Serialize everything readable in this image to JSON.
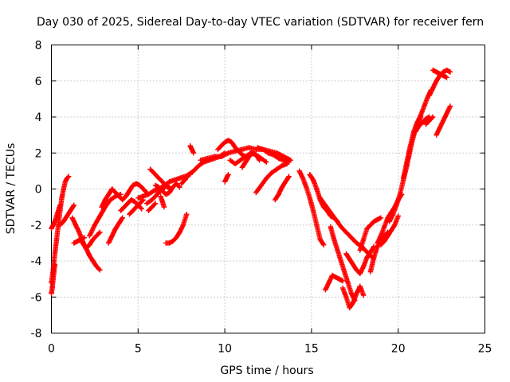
{
  "chart_data": {
    "type": "scatter",
    "title": "Day 030 of 2025, Sidereal Day-to-day VTEC variation (SDTVAR) for receiver fern",
    "xlabel": "GPS time / hours",
    "ylabel": "SDTVAR / TECUs",
    "xlim": [
      0,
      25
    ],
    "ylim": [
      -8,
      8
    ],
    "xticks": [
      "0",
      "5",
      "10",
      "15",
      "20",
      "25"
    ],
    "yticks": [
      "-8",
      "-6",
      "-4",
      "-2",
      "0",
      "2",
      "4",
      "6",
      "8"
    ],
    "grid": true,
    "marker": "+",
    "color": "#ff0000",
    "series": [
      {
        "name": "s1",
        "x": [
          0.0,
          0.1,
          0.2,
          0.3,
          0.4,
          0.5,
          0.6,
          0.7,
          0.8,
          0.9,
          1.0
        ],
        "y": [
          -5.2,
          -4.5,
          -3.6,
          -2.8,
          -2.0,
          -1.2,
          -0.5,
          0.0,
          0.4,
          0.6,
          0.7
        ]
      },
      {
        "name": "s2",
        "x": [
          0.0,
          0.05,
          0.1,
          0.15,
          0.2
        ],
        "y": [
          -5.8,
          -5.5,
          -5.0,
          -4.6,
          -4.2
        ]
      },
      {
        "name": "s3",
        "x": [
          0.0,
          0.1,
          0.2,
          0.3,
          0.4,
          0.5
        ],
        "y": [
          -2.2,
          -2.0,
          -1.8,
          -1.5,
          -1.2,
          -0.9
        ]
      },
      {
        "name": "s4",
        "x": [
          0.5,
          0.7,
          0.9,
          1.1,
          1.3
        ],
        "y": [
          -2.0,
          -1.8,
          -1.5,
          -1.2,
          -0.9
        ]
      },
      {
        "name": "s5",
        "x": [
          1.2,
          1.4,
          1.6,
          1.8,
          2.0,
          2.2,
          2.4,
          2.6,
          2.8
        ],
        "y": [
          -1.6,
          -2.0,
          -2.4,
          -2.9,
          -3.3,
          -3.7,
          -4.0,
          -4.3,
          -4.5
        ]
      },
      {
        "name": "s6",
        "x": [
          1.3,
          1.5,
          1.7,
          1.9
        ],
        "y": [
          -3.0,
          -2.9,
          -2.8,
          -2.7
        ]
      },
      {
        "name": "s7",
        "x": [
          1.8,
          2.0,
          2.2,
          2.4,
          2.6,
          2.8
        ],
        "y": [
          -3.0,
          -3.3,
          -3.1,
          -2.8,
          -2.6,
          -2.4
        ]
      },
      {
        "name": "s8",
        "x": [
          2.2,
          2.5,
          2.8,
          3.1,
          3.4,
          3.7,
          4.0
        ],
        "y": [
          -2.6,
          -2.0,
          -1.5,
          -1.0,
          -0.6,
          -0.4,
          -0.3
        ]
      },
      {
        "name": "s9",
        "x": [
          2.9,
          3.1,
          3.3,
          3.5,
          3.7,
          3.9,
          4.1,
          4.3,
          4.5,
          4.7,
          4.9,
          5.1,
          5.3,
          5.5
        ],
        "y": [
          -1.0,
          -0.6,
          -0.3,
          0.0,
          -0.2,
          -0.4,
          -0.6,
          -0.4,
          -0.1,
          0.2,
          0.3,
          0.2,
          0.0,
          -0.2
        ]
      },
      {
        "name": "s10",
        "x": [
          3.3,
          3.5,
          3.7,
          3.9,
          4.1
        ],
        "y": [
          -3.0,
          -2.6,
          -2.2,
          -1.9,
          -1.6
        ]
      },
      {
        "name": "s11",
        "x": [
          4.0,
          4.2,
          4.4,
          4.6,
          4.8,
          5.0,
          5.2
        ],
        "y": [
          -1.2,
          -1.0,
          -0.8,
          -0.6,
          -0.7,
          -0.9,
          -1.1
        ]
      },
      {
        "name": "s12",
        "x": [
          4.5,
          4.7,
          4.9,
          5.1,
          5.3
        ],
        "y": [
          -1.4,
          -1.2,
          -1.0,
          -0.8,
          -0.6
        ]
      },
      {
        "name": "s13",
        "x": [
          5.0,
          5.3,
          5.6,
          5.9,
          6.2,
          6.5,
          6.8,
          7.1,
          7.4,
          7.7,
          8.0
        ],
        "y": [
          -0.5,
          -0.4,
          -0.3,
          -0.1,
          0.0,
          0.2,
          0.4,
          0.5,
          0.6,
          0.7,
          0.8
        ]
      },
      {
        "name": "s14",
        "x": [
          5.5,
          5.8,
          6.1,
          6.4,
          6.7
        ],
        "y": [
          -0.8,
          -0.6,
          -0.3,
          0.0,
          0.2
        ]
      },
      {
        "name": "s15",
        "x": [
          6.0,
          6.2,
          6.4,
          6.6,
          6.8,
          7.0,
          7.2,
          7.4
        ],
        "y": [
          0.2,
          0.1,
          -0.1,
          -0.3,
          -0.2,
          0.1,
          0.3,
          0.1
        ]
      },
      {
        "name": "s16",
        "x": [
          5.6,
          5.8,
          6.0
        ],
        "y": [
          -1.2,
          -1.0,
          -0.8
        ]
      },
      {
        "name": "s17",
        "x": [
          6.3,
          6.4,
          6.5
        ],
        "y": [
          -0.4,
          -0.7,
          -1.0
        ]
      },
      {
        "name": "s18",
        "x": [
          5.7,
          5.9,
          6.1,
          6.3,
          6.5,
          6.7,
          6.9
        ],
        "y": [
          1.1,
          0.9,
          0.7,
          0.5,
          0.3,
          0.1,
          0.0
        ]
      },
      {
        "name": "s19",
        "x": [
          6.6,
          6.8,
          7.0,
          7.2,
          7.4,
          7.6,
          7.8
        ],
        "y": [
          -3.0,
          -3.0,
          -2.9,
          -2.7,
          -2.4,
          -2.0,
          -1.4
        ]
      },
      {
        "name": "s20",
        "x": [
          7.5,
          7.7,
          7.9,
          8.2,
          8.5,
          8.8,
          9.1,
          9.4,
          9.7,
          10.0
        ],
        "y": [
          0.3,
          0.5,
          0.8,
          1.0,
          1.3,
          1.5,
          1.6,
          1.7,
          1.8,
          2.0
        ]
      },
      {
        "name": "s21",
        "x": [
          8.0,
          8.1,
          8.2
        ],
        "y": [
          2.4,
          2.2,
          2.0
        ]
      },
      {
        "name": "s22",
        "x": [
          8.6,
          9.0,
          9.4,
          9.8,
          10.2,
          10.6,
          11.0,
          11.4,
          11.8,
          12.2,
          12.6,
          13.0,
          13.4,
          13.8
        ],
        "y": [
          1.6,
          1.7,
          1.8,
          1.8,
          2.0,
          2.1,
          2.2,
          2.3,
          2.2,
          2.2,
          2.1,
          2.0,
          1.8,
          1.6
        ]
      },
      {
        "name": "s23",
        "x": [
          9.6,
          9.8,
          10.0,
          10.2,
          10.4,
          10.6,
          10.8,
          11.0,
          11.2
        ],
        "y": [
          2.2,
          2.4,
          2.6,
          2.7,
          2.6,
          2.3,
          2.1,
          1.9,
          1.8
        ]
      },
      {
        "name": "s24",
        "x": [
          10.0,
          10.1,
          10.2
        ],
        "y": [
          0.4,
          0.6,
          0.8
        ]
      },
      {
        "name": "s25",
        "x": [
          10.3,
          10.6,
          10.9,
          11.2,
          11.5,
          11.8,
          12.1,
          12.4
        ],
        "y": [
          1.6,
          1.4,
          1.6,
          1.8,
          2.0,
          1.9,
          1.7,
          1.5
        ]
      },
      {
        "name": "s26",
        "x": [
          11.0,
          11.2,
          11.4,
          11.6,
          11.8,
          12.0
        ],
        "y": [
          1.2,
          1.5,
          1.8,
          2.0,
          1.9,
          1.6
        ]
      },
      {
        "name": "s27",
        "x": [
          11.9,
          12.2,
          12.5,
          12.8,
          13.1,
          13.4,
          13.7
        ],
        "y": [
          2.3,
          2.2,
          2.0,
          1.9,
          1.7,
          1.6,
          1.5
        ]
      },
      {
        "name": "s28",
        "x": [
          11.8,
          12.1,
          12.4,
          12.7,
          13.0,
          13.3,
          13.6
        ],
        "y": [
          -0.2,
          0.2,
          0.6,
          0.9,
          1.1,
          1.3,
          1.4
        ]
      },
      {
        "name": "s29",
        "x": [
          12.9,
          13.1,
          13.3,
          13.5,
          13.7
        ],
        "y": [
          -0.6,
          -0.3,
          0.1,
          0.4,
          0.7
        ]
      },
      {
        "name": "s30",
        "x": [
          14.3,
          14.5,
          14.7,
          14.9,
          15.1,
          15.3,
          15.5,
          15.7
        ],
        "y": [
          1.0,
          0.6,
          0.1,
          -0.5,
          -1.2,
          -2.0,
          -2.8,
          -3.1
        ]
      },
      {
        "name": "s31",
        "x": [
          14.9,
          15.1,
          15.3,
          15.5,
          15.7,
          15.9,
          16.1,
          16.3,
          16.5
        ],
        "y": [
          0.8,
          0.5,
          0.0,
          -0.6,
          -1.0,
          -1.2,
          -1.5,
          -1.6,
          -1.8
        ]
      },
      {
        "name": "s32",
        "x": [
          15.5,
          15.8,
          16.1,
          16.4,
          16.7,
          17.0,
          17.3,
          17.6,
          17.9,
          18.2,
          18.5
        ],
        "y": [
          -0.5,
          -0.9,
          -1.3,
          -1.7,
          -2.1,
          -2.4,
          -2.7,
          -3.0,
          -3.2,
          -3.5,
          -3.8
        ]
      },
      {
        "name": "s33",
        "x": [
          16.1,
          16.3,
          16.5,
          16.7,
          16.9,
          17.1,
          17.3,
          17.5
        ],
        "y": [
          -2.1,
          -2.8,
          -3.4,
          -4.0,
          -4.6,
          -5.2,
          -5.8,
          -6.2
        ]
      },
      {
        "name": "s34",
        "x": [
          15.8,
          16.0,
          16.2,
          16.4,
          16.6,
          16.8
        ],
        "y": [
          -5.6,
          -5.2,
          -4.8,
          -4.9,
          -5.0,
          -5.1
        ]
      },
      {
        "name": "s35",
        "x": [
          16.8,
          17.0,
          17.2,
          17.4,
          17.6,
          17.8,
          18.0
        ],
        "y": [
          -5.5,
          -6.0,
          -6.6,
          -6.3,
          -5.8,
          -5.4,
          -5.9
        ]
      },
      {
        "name": "s36",
        "x": [
          17.0,
          17.2,
          17.4,
          17.6,
          17.8,
          18.0,
          18.2,
          18.4,
          18.6
        ],
        "y": [
          -3.6,
          -3.9,
          -4.2,
          -4.5,
          -4.7,
          -4.3,
          -3.8,
          -3.5,
          -3.2
        ]
      },
      {
        "name": "s37",
        "x": [
          17.8,
          18.0,
          18.2,
          18.4,
          18.6,
          18.8,
          19.0
        ],
        "y": [
          -3.4,
          -2.8,
          -2.2,
          -2.0,
          -1.8,
          -1.7,
          -1.6
        ]
      },
      {
        "name": "s38",
        "x": [
          18.4,
          18.6,
          18.8,
          19.0,
          19.2,
          19.4
        ],
        "y": [
          -4.6,
          -3.8,
          -3.2,
          -2.8,
          -2.6,
          -2.4
        ]
      },
      {
        "name": "s39",
        "x": [
          18.8,
          19.0,
          19.2,
          19.4,
          19.6,
          19.8,
          20.0,
          20.2
        ],
        "y": [
          -3.0,
          -2.6,
          -2.1,
          -1.6,
          -1.3,
          -1.0,
          -0.6,
          -0.3
        ]
      },
      {
        "name": "s40",
        "x": [
          19.0,
          19.2,
          19.4,
          19.6,
          19.8,
          20.0
        ],
        "y": [
          -3.1,
          -2.9,
          -2.6,
          -2.3,
          -2.0,
          -1.5
        ]
      },
      {
        "name": "s41",
        "x": [
          19.5,
          19.7,
          19.9,
          20.1,
          20.3,
          20.5,
          20.7,
          20.9,
          21.1,
          21.3
        ],
        "y": [
          -1.8,
          -1.4,
          -0.9,
          -0.3,
          0.5,
          1.3,
          2.2,
          3.0,
          3.6,
          4.0
        ]
      },
      {
        "name": "s42",
        "x": [
          20.3,
          20.5,
          20.7,
          20.9,
          21.1,
          21.3,
          21.5,
          21.7,
          21.9
        ],
        "y": [
          0.6,
          1.5,
          2.4,
          3.2,
          3.7,
          4.1,
          4.6,
          5.1,
          5.5
        ]
      },
      {
        "name": "s43",
        "x": [
          21.0,
          21.2,
          21.4,
          21.6,
          21.8
        ],
        "y": [
          3.2,
          3.5,
          3.7,
          3.9,
          4.0
        ]
      },
      {
        "name": "s44",
        "x": [
          21.8,
          22.0,
          22.2,
          22.4,
          22.6,
          22.8,
          23.0
        ],
        "y": [
          5.2,
          5.6,
          6.0,
          6.3,
          6.5,
          6.6,
          6.5
        ]
      },
      {
        "name": "s45",
        "x": [
          22.0,
          22.2,
          22.4,
          22.6,
          22.8
        ],
        "y": [
          6.6,
          6.5,
          6.4,
          6.3,
          6.2
        ]
      },
      {
        "name": "s46",
        "x": [
          22.2,
          22.4,
          22.6,
          22.8,
          23.0
        ],
        "y": [
          3.0,
          3.4,
          3.8,
          4.2,
          4.6
        ]
      },
      {
        "name": "s47",
        "x": [
          21.6,
          21.8,
          22.0
        ],
        "y": [
          3.6,
          3.8,
          4.0
        ]
      }
    ]
  }
}
